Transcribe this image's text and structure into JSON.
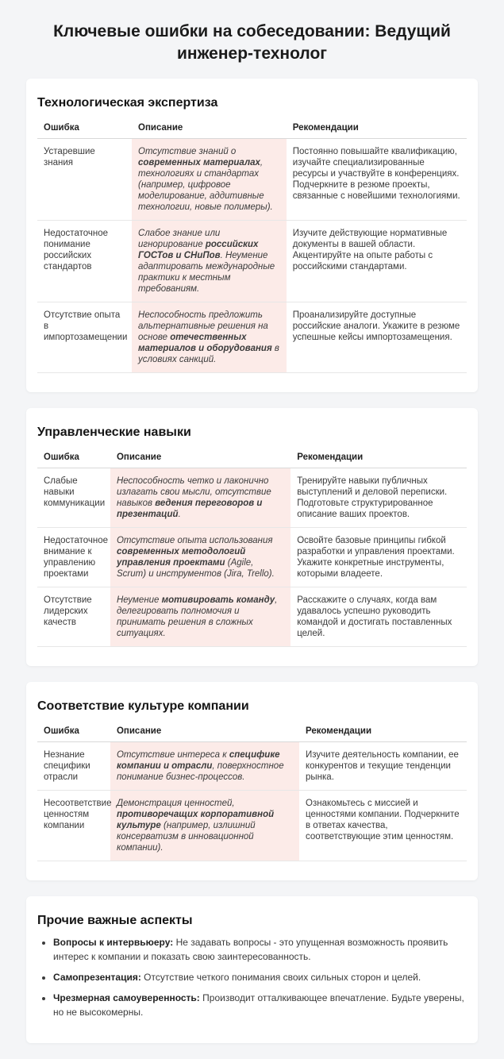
{
  "page": {
    "title": "Ключевые ошибки на собеседовании: Ведущий инженер-технолог"
  },
  "colors": {
    "page_bg": "#f4f5f7",
    "card_bg": "#ffffff",
    "description_highlight_bg": "#fcebe8",
    "row_border": "#e7e7e7"
  },
  "table_headers": {
    "error": "Ошибка",
    "description": "Описание",
    "recommendation": "Рекомендации"
  },
  "sections": [
    {
      "heading": "Технологическая экспертиза",
      "rows": [
        {
          "error": "Устаревшие знания",
          "desc": [
            {
              "t": "Отсутствие знаний о ",
              "b": false
            },
            {
              "t": "современных материалах",
              "b": true
            },
            {
              "t": ", технологиях и стандартах (например, цифровое моделирование, аддитивные технологии, новые полимеры).",
              "b": false
            }
          ],
          "rec": "Постоянно повышайте квалификацию, изучайте специализированные ресурсы и участвуйте в конференциях. Подчеркните в резюме проекты, связанные с новейшими технологиями."
        },
        {
          "error": "Недостаточное понимание российских стандартов",
          "desc": [
            {
              "t": "Слабое знание или игнорирование ",
              "b": false
            },
            {
              "t": "российских ГОСТов и СНиПов",
              "b": true
            },
            {
              "t": ". Неумение адаптировать международные практики к местным требованиям.",
              "b": false
            }
          ],
          "rec": "Изучите действующие нормативные документы в вашей области. Акцентируйте на опыте работы с российскими стандартами."
        },
        {
          "error": "Отсутствие опыта в импортозамещении",
          "desc": [
            {
              "t": "Неспособность предложить альтернативные решения на основе ",
              "b": false
            },
            {
              "t": "отечественных материалов и оборудования",
              "b": true
            },
            {
              "t": " в условиях санкций.",
              "b": false
            }
          ],
          "rec": "Проанализируйте доступные российские аналоги. Укажите в резюме успешные кейсы импортозамещения."
        }
      ]
    },
    {
      "heading": "Управленческие навыки",
      "rows": [
        {
          "error": "Слабые навыки коммуникации",
          "desc": [
            {
              "t": "Неспособность четко и лаконично излагать свои мысли, отсутствие навыков ",
              "b": false
            },
            {
              "t": "ведения переговоров и презентаций",
              "b": true
            },
            {
              "t": ".",
              "b": false
            }
          ],
          "rec": "Тренируйте навыки публичных выступлений и деловой переписки. Подготовьте структурированное описание ваших проектов."
        },
        {
          "error": "Недостаточное внимание к управлению проектами",
          "desc": [
            {
              "t": "Отсутствие опыта использования ",
              "b": false
            },
            {
              "t": "современных методологий управления проектами",
              "b": true
            },
            {
              "t": " (Agile, Scrum) и инструментов (Jira, Trello).",
              "b": false
            }
          ],
          "rec": "Освойте базовые принципы гибкой разработки и управления проектами. Укажите конкретные инструменты, которыми владеете."
        },
        {
          "error": "Отсутствие лидерских качеств",
          "desc": [
            {
              "t": "Неумение ",
              "b": false
            },
            {
              "t": "мотивировать команду",
              "b": true
            },
            {
              "t": ", делегировать полномочия и принимать решения в сложных ситуациях.",
              "b": false
            }
          ],
          "rec": "Расскажите о случаях, когда вам удавалось успешно руководить командой и достигать поставленных целей."
        }
      ]
    },
    {
      "heading": "Соответствие культуре компании",
      "rows": [
        {
          "error": "Незнание специфики отрасли",
          "desc": [
            {
              "t": "Отсутствие интереса к ",
              "b": false
            },
            {
              "t": "специфике компании и отрасли",
              "b": true
            },
            {
              "t": ", поверхностное понимание бизнес-процессов.",
              "b": false
            }
          ],
          "rec": "Изучите деятельность компании, ее конкурентов и текущие тенденции рынка."
        },
        {
          "error": "Несоответствие ценностям компании",
          "desc": [
            {
              "t": "Демонстрация ценностей, ",
              "b": false
            },
            {
              "t": "противоречащих корпоративной культуре",
              "b": true
            },
            {
              "t": " (например, излишний консерватизм в инновационной компании).",
              "b": false
            }
          ],
          "rec": "Ознакомьтесь с миссией и ценностями компании. Подчеркните в ответах качества, соответствующие этим ценностям."
        }
      ]
    }
  ],
  "other": {
    "heading": "Прочие важные аспекты",
    "bullets": [
      {
        "label": "Вопросы к интервьюеру:",
        "text": "Не задавать вопросы - это упущенная возможность проявить интерес к компании и показать свою заинтересованность."
      },
      {
        "label": "Самопрезентация:",
        "text": "Отсутствие четкого понимания своих сильных сторон и целей."
      },
      {
        "label": "Чрезмерная самоуверенность:",
        "text": "Производит отталкивающее впечатление. Будьте уверены, но не высокомерны."
      }
    ]
  }
}
